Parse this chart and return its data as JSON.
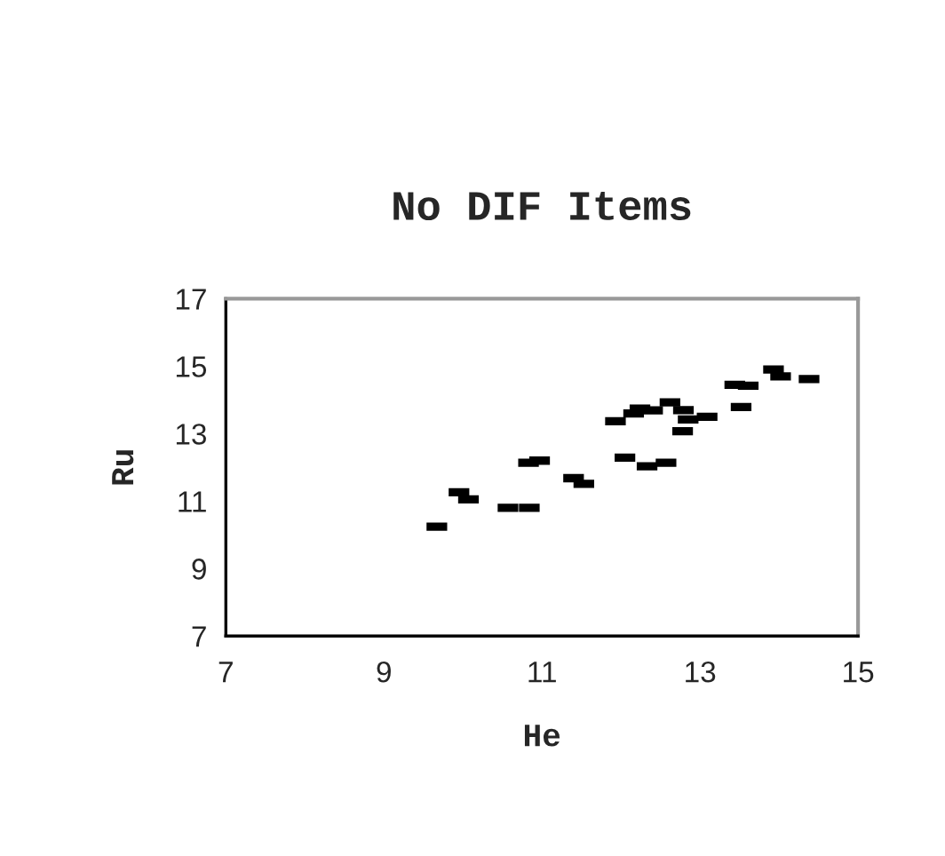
{
  "chart_data": {
    "type": "scatter",
    "title": "No DIF Items",
    "xlabel": "He",
    "ylabel": "Ru",
    "x": [
      9.67,
      9.95,
      10.07,
      10.57,
      10.84,
      10.83,
      10.97,
      11.4,
      11.53,
      11.93,
      12.05,
      12.16,
      12.24,
      12.4,
      12.33,
      12.57,
      12.62,
      12.79,
      12.85,
      12.78,
      13.09,
      13.44,
      13.61,
      13.52,
      13.93,
      14.02,
      14.38
    ],
    "values": [
      10.24,
      11.26,
      11.05,
      10.8,
      10.8,
      12.14,
      12.2,
      11.68,
      11.51,
      13.37,
      12.29,
      13.6,
      13.74,
      13.69,
      12.03,
      12.14,
      13.93,
      13.7,
      13.42,
      13.07,
      13.5,
      14.45,
      14.42,
      13.79,
      14.9,
      14.7,
      14.62
    ],
    "color": "#000000",
    "marker": "square",
    "xlim": [
      7,
      15
    ],
    "xticks": [
      7,
      9,
      11,
      13,
      15
    ],
    "ylim": [
      7,
      17
    ],
    "yticks": [
      7,
      9,
      11,
      13,
      15,
      17
    ],
    "grid": false,
    "legend": false
  }
}
